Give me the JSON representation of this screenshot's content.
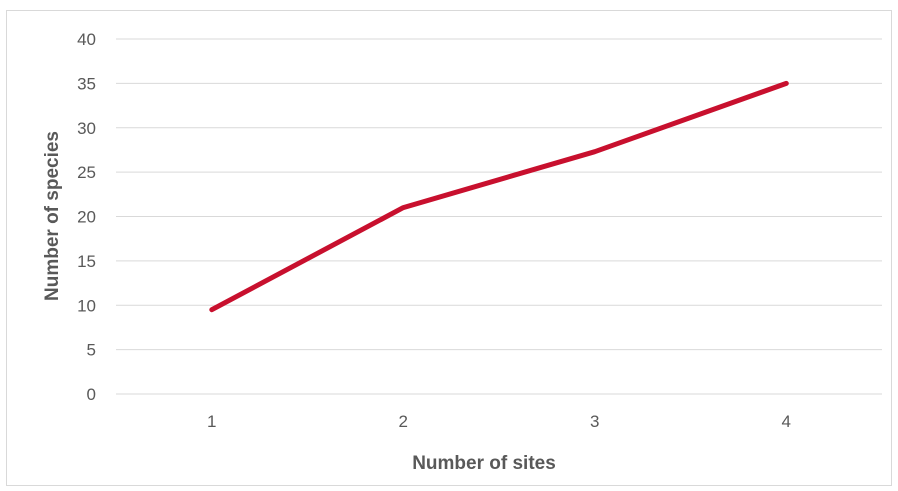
{
  "chart_data": {
    "type": "line",
    "title": "",
    "xlabel": "Number of sites",
    "ylabel": "Number of species",
    "categories": [
      "1",
      "2",
      "3",
      "4"
    ],
    "series": [
      {
        "values": [
          9.5,
          21,
          27.3,
          35
        ],
        "color": "#c8102e"
      }
    ],
    "ylim": [
      0,
      40
    ],
    "yticks": [
      "0",
      "5",
      "10",
      "15",
      "20",
      "25",
      "30",
      "35",
      "40"
    ],
    "grid": true,
    "legend": "none",
    "colors": {
      "line": "#c8102e",
      "grid": "#d9d9d9",
      "text": "#595959"
    }
  }
}
